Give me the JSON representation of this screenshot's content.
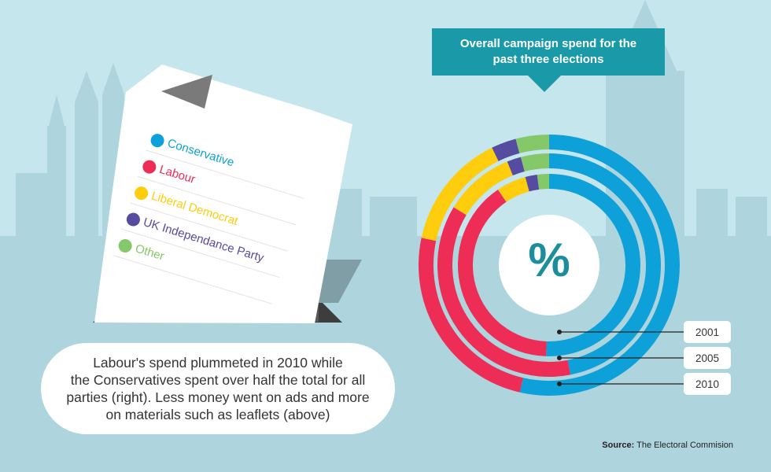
{
  "colors": {
    "background": "#c6e6ee",
    "skyline": "#aed4de",
    "title_bg": "#1a9aa8",
    "Conservative": "#0ea1d9",
    "Labour": "#ee2d56",
    "Liberal Democrat": "#fdcd0e",
    "UK Independance Party": "#554ba0",
    "Other": "#85c86a"
  },
  "header": {
    "title_line1": "Overall campaign spend for the",
    "title_line2": "past three elections"
  },
  "legend": [
    {
      "label": "Conservative",
      "color": "#0ea1d9"
    },
    {
      "label": "Labour",
      "color": "#ee2d56"
    },
    {
      "label": "Liberal Democrat",
      "color": "#fdcd0e"
    },
    {
      "label": "UK Independance Party",
      "color": "#554ba0"
    },
    {
      "label": "Other",
      "color": "#85c86a"
    }
  ],
  "center_symbol": "%",
  "note": {
    "line1": "Labour's spend plummeted in 2010 while",
    "line2": "the Conservatives spent over half the total for all",
    "line3": "parties (right). Less money went on ads and more",
    "line4": "on materials such as leaflets (above)"
  },
  "year_labels": [
    "2001",
    "2005",
    "2010"
  ],
  "source": {
    "prefix": "Source:",
    "text": "The Electoral Commision"
  },
  "chart_data": {
    "type": "pie",
    "variant": "nested-donut",
    "title": "Overall campaign spend for the past three elections",
    "unit": "%",
    "categories": [
      "Conservative",
      "Labour",
      "Liberal Democrat",
      "UK Independance Party",
      "Other"
    ],
    "rings": [
      {
        "name": "2001",
        "values": [
          48,
          38,
          5,
          2,
          2
        ]
      },
      {
        "name": "2005",
        "values": [
          46,
          36,
          10,
          2,
          4
        ]
      },
      {
        "name": "2010",
        "values": [
          52,
          24,
          14,
          3,
          4
        ]
      }
    ],
    "ring_order": "inner-to-outer",
    "start_angle_deg": 0,
    "direction": "clockwise-from-top",
    "source": "The Electoral Commision"
  }
}
